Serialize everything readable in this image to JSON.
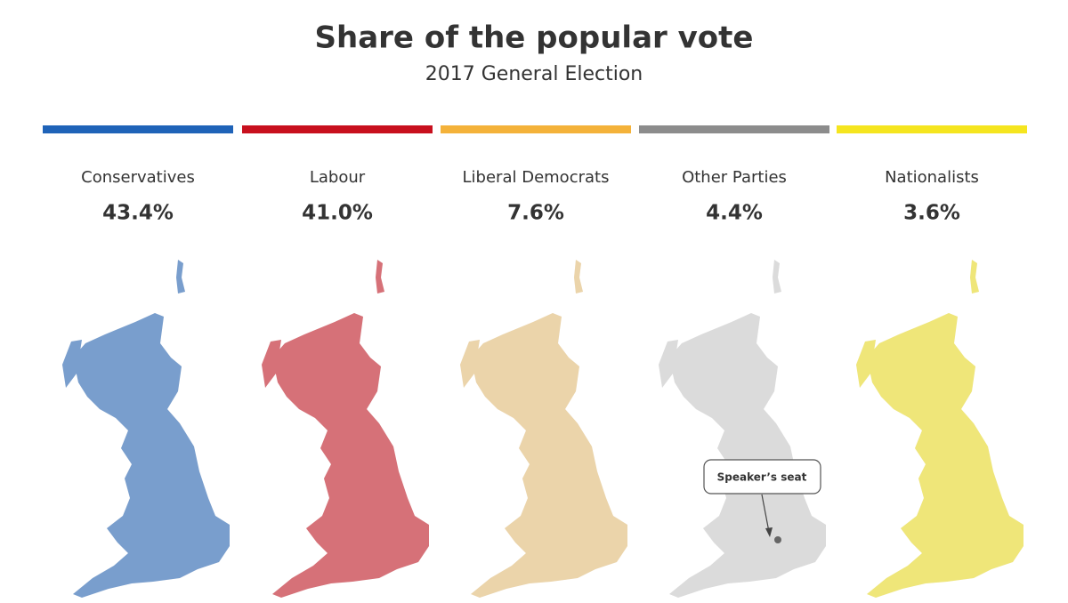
{
  "header": {
    "title": "Share of the popular vote",
    "subtitle": "2017 General Election"
  },
  "parties": [
    {
      "name": "Conservatives",
      "share": "43.4%",
      "color": "#1f63b8"
    },
    {
      "name": "Labour",
      "share": "41.0%",
      "color": "#c8101e"
    },
    {
      "name": "Liberal Democrats",
      "share": "7.6%",
      "color": "#f4b23a"
    },
    {
      "name": "Other Parties",
      "share": "4.4%",
      "color": "#8c8c8c"
    },
    {
      "name": "Nationalists",
      "share": "3.6%",
      "color": "#f5e51f"
    }
  ],
  "annotation": "Speaker’s seat"
}
